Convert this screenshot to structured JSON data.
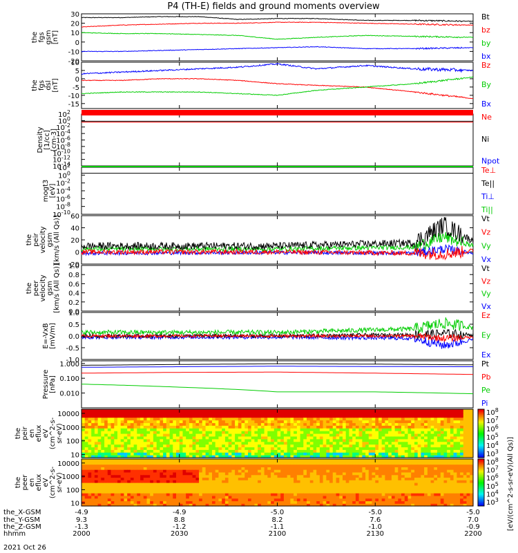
{
  "figure": {
    "title": "P4 (TH-E) fields and ground moments overview",
    "date": "2021 Oct 26"
  },
  "chart_data": [
    {
      "type": "line",
      "name": "fgs_gsm",
      "ylabel": [
        "the",
        "fgs",
        "gsm",
        "[nT]"
      ],
      "ylim": [
        -20,
        30
      ],
      "yticks": [
        30,
        20,
        10,
        0,
        -10,
        -20
      ],
      "legend": [
        {
          "name": "Bt",
          "color": "#000000"
        },
        {
          "name": "bz",
          "color": "#ff0000"
        },
        {
          "name": "by",
          "color": "#00cc00"
        },
        {
          "name": "bx",
          "color": "#0000ff"
        }
      ],
      "series": [
        {
          "name": "Bt",
          "color": "#000000",
          "x": [
            0,
            20,
            40,
            60,
            80,
            100,
            120,
            145,
            170,
            200
          ],
          "y": [
            26,
            26,
            27,
            27,
            24,
            25,
            25,
            23,
            23,
            22
          ],
          "noise": 0.3
        },
        {
          "name": "bz",
          "color": "#ff0000",
          "x": [
            0,
            20,
            40,
            60,
            80,
            100,
            120,
            145,
            170,
            200
          ],
          "y": [
            16,
            18,
            19,
            20,
            20,
            21,
            21,
            20,
            19,
            18
          ],
          "noise": 0.3
        },
        {
          "name": "by",
          "color": "#00cc00",
          "x": [
            0,
            20,
            40,
            60,
            80,
            100,
            120,
            145,
            170,
            200
          ],
          "y": [
            10,
            9,
            9,
            8,
            7,
            3,
            5,
            7,
            6,
            5
          ],
          "noise": 0.3
        },
        {
          "name": "bx",
          "color": "#0000ff",
          "x": [
            0,
            20,
            40,
            60,
            80,
            100,
            120,
            145,
            170,
            200
          ],
          "y": [
            -10,
            -10,
            -9,
            -8,
            -7,
            -6,
            -5,
            -7,
            -7,
            -6
          ],
          "noise": 0.3
        }
      ]
    },
    {
      "type": "line",
      "name": "fgs_dsl",
      "ylabel": [
        "the",
        "fgs",
        "dsl",
        "[nT]"
      ],
      "ylim": [
        -18,
        10
      ],
      "yticks": [
        10,
        5,
        0,
        -5,
        -10,
        -15
      ],
      "legend": [
        {
          "name": "Bz",
          "color": "#ff0000"
        },
        {
          "name": "By",
          "color": "#00cc00"
        },
        {
          "name": "Bx",
          "color": "#0000ff"
        }
      ],
      "series": [
        {
          "name": "Bz",
          "color": "#ff0000",
          "x": [
            0,
            20,
            40,
            60,
            80,
            100,
            120,
            145,
            170,
            200
          ],
          "y": [
            -1,
            -1,
            0,
            0,
            -1,
            -3,
            -4,
            -5,
            -8,
            -12
          ],
          "noise": 0.2
        },
        {
          "name": "By",
          "color": "#00cc00",
          "x": [
            0,
            20,
            40,
            60,
            80,
            100,
            120,
            145,
            170,
            200
          ],
          "y": [
            -9,
            -8,
            -8,
            -8,
            -9,
            -10,
            -7,
            -5,
            -3,
            1
          ],
          "noise": 0.2
        },
        {
          "name": "Bx",
          "color": "#0000ff",
          "x": [
            0,
            20,
            40,
            60,
            80,
            100,
            120,
            145,
            170,
            200
          ],
          "y": [
            3,
            4,
            5,
            6,
            7,
            9,
            6,
            8,
            6,
            5
          ],
          "noise": 0.4
        }
      ]
    },
    {
      "type": "line",
      "name": "density",
      "ylabel": [
        "Density",
        "[1/cc]",
        "[cm-3]"
      ],
      "yscale": "log",
      "ylim": [
        1e-14,
        100
      ],
      "yticks_exp": [
        2,
        0,
        -2,
        -4,
        -6,
        -8,
        -10,
        -12,
        -14
      ],
      "legend": [
        {
          "name": "Ne",
          "color": "#ff0000"
        },
        {
          "name": "Ni",
          "color": "#000000"
        },
        {
          "name": "Npot",
          "color": "#0000ff"
        }
      ],
      "series": [
        {
          "name": "Ne",
          "color": "#ff0000",
          "x": [
            0,
            200
          ],
          "y": [
            0.3,
            0.3
          ],
          "noise": 0
        },
        {
          "name": "Ni",
          "color": "#000000",
          "x": [
            0,
            200
          ],
          "y": [
            0.6,
            0.6
          ],
          "noise": 0
        }
      ]
    },
    {
      "type": "line",
      "name": "temperature",
      "ylabel": [
        "mogt3",
        "[eV]"
      ],
      "yscale": "log",
      "ylim": [
        1e-10,
        100
      ],
      "yticks_exp": [
        2,
        0,
        -2,
        -4,
        -6,
        -8,
        -10
      ],
      "legend": [
        {
          "name": "Te⊥",
          "color": "#ff0000"
        },
        {
          "name": "Te||",
          "color": "#000000"
        },
        {
          "name": "Ti⊥",
          "color": "#0000ff"
        },
        {
          "name": "Ti||",
          "color": "#00cc00"
        }
      ],
      "series": [
        {
          "name": "Te||",
          "color": "#000000",
          "x": [
            0,
            200
          ],
          "y": [
            3,
            3
          ],
          "noise": 0
        }
      ]
    },
    {
      "type": "line",
      "name": "peir_velocity",
      "ylabel": [
        "the",
        "peir",
        "velocity",
        "gsm",
        "[km/s (All Qs)]"
      ],
      "ylim": [
        -20,
        60
      ],
      "yticks": [
        60,
        40,
        20,
        0,
        -20
      ],
      "legend": [
        {
          "name": "Vt",
          "color": "#000000"
        },
        {
          "name": "Vz",
          "color": "#ff0000"
        },
        {
          "name": "Vy",
          "color": "#00cc00"
        },
        {
          "name": "Vx",
          "color": "#0000ff"
        }
      ],
      "series": [
        {
          "name": "Vx",
          "color": "#0000ff",
          "x": [
            0,
            100,
            170,
            185,
            200
          ],
          "y": [
            -2,
            -1,
            -2,
            5,
            -2
          ],
          "noise": 3
        },
        {
          "name": "Vy",
          "color": "#00cc00",
          "x": [
            0,
            100,
            170,
            185,
            200
          ],
          "y": [
            5,
            5,
            8,
            25,
            10
          ],
          "noise": 4
        },
        {
          "name": "Vt",
          "color": "#000000",
          "x": [
            0,
            100,
            170,
            185,
            200
          ],
          "y": [
            10,
            10,
            15,
            45,
            18
          ],
          "noise": 6
        },
        {
          "name": "Vz",
          "color": "#ff0000",
          "x": [
            0,
            100,
            170,
            185,
            200
          ],
          "y": [
            0,
            0,
            -2,
            -3,
            2
          ],
          "noise": 4
        }
      ]
    },
    {
      "type": "line",
      "name": "peer_velocity",
      "ylabel": [
        "the",
        "peer",
        "velocity",
        "gsm",
        "[km/s (All Qs)]"
      ],
      "ylim": [
        0,
        1
      ],
      "yticks": [
        1.0,
        0.8,
        0.6,
        0.4,
        0.2,
        0.0
      ],
      "legend": [
        {
          "name": "Vt",
          "color": "#000000"
        },
        {
          "name": "Vz",
          "color": "#ff0000"
        },
        {
          "name": "Vy",
          "color": "#00cc00"
        },
        {
          "name": "Vx",
          "color": "#0000ff"
        }
      ],
      "series": []
    },
    {
      "type": "line",
      "name": "efield",
      "ylabel": [
        "E=-VxB",
        "[mV/m]"
      ],
      "ylim": [
        -1,
        1
      ],
      "yticks": [
        1.0,
        0.5,
        0.0,
        -0.5,
        -1.0
      ],
      "legend": [
        {
          "name": "Ez",
          "color": "#ff0000"
        },
        {
          "name": "Ey",
          "color": "#00cc00"
        },
        {
          "name": "Ex",
          "color": "#0000ff"
        }
      ],
      "series": [
        {
          "name": "Ex",
          "color": "#0000ff",
          "x": [
            0,
            100,
            170,
            185,
            200
          ],
          "y": [
            -0.05,
            -0.05,
            -0.1,
            -0.4,
            -0.15
          ],
          "noise": 0.08
        },
        {
          "name": "Ey",
          "color": "#00cc00",
          "x": [
            0,
            100,
            170,
            185,
            200
          ],
          "y": [
            0.15,
            0.15,
            0.3,
            0.55,
            0.35
          ],
          "noise": 0.1
        },
        {
          "name": "Et",
          "color": "#000000",
          "x": [
            0,
            100,
            170,
            185,
            200
          ],
          "y": [
            0.0,
            0.0,
            0.05,
            0.1,
            0.05
          ],
          "noise": 0.08
        },
        {
          "name": "Ez",
          "color": "#ff0000",
          "x": [
            0,
            100,
            170,
            185,
            200
          ],
          "y": [
            0.0,
            0.0,
            0.0,
            -0.1,
            -0.05
          ],
          "noise": 0.06
        }
      ]
    },
    {
      "type": "line",
      "name": "pressure",
      "ylabel": [
        "Pressure",
        "[nPa]"
      ],
      "yscale": "log",
      "ylim": [
        0.001,
        1.5
      ],
      "yticks_log": [
        1.0,
        0.1,
        0.01
      ],
      "ytick_labels": [
        "1.000",
        "0.100",
        "0.010"
      ],
      "legend": [
        {
          "name": "Pt",
          "color": "#000000"
        },
        {
          "name": "Pb",
          "color": "#ff0000"
        },
        {
          "name": "Pe",
          "color": "#00cc00"
        },
        {
          "name": "Pi",
          "color": "#0000ff"
        }
      ],
      "series": [
        {
          "name": "Pt",
          "color": "#000000",
          "x": [
            0,
            50,
            100,
            150,
            200
          ],
          "y": [
            0.75,
            0.85,
            0.95,
            0.9,
            0.8
          ],
          "noise": 0
        },
        {
          "name": "Pi",
          "color": "#0000ff",
          "x": [
            0,
            50,
            100,
            150,
            200
          ],
          "y": [
            0.55,
            0.6,
            0.65,
            0.62,
            0.6
          ],
          "noise": 0
        },
        {
          "name": "Pb",
          "color": "#ff0000",
          "x": [
            0,
            50,
            100,
            150,
            200
          ],
          "y": [
            0.22,
            0.25,
            0.26,
            0.22,
            0.18
          ],
          "noise": 0
        },
        {
          "name": "Pe",
          "color": "#00cc00",
          "x": [
            0,
            50,
            100,
            150,
            200
          ],
          "y": [
            0.04,
            0.025,
            0.012,
            0.012,
            0.009
          ],
          "noise": 0
        }
      ]
    },
    {
      "type": "heatmap",
      "name": "peir_en_eflux",
      "ylabel": [
        "the",
        "peir",
        "en",
        "eflux",
        "eV",
        "(cm^2-s-",
        "sr-eV)"
      ],
      "yscale": "log",
      "ylim": [
        6,
        20000
      ],
      "yticks_log": [
        10000,
        1000,
        100,
        10
      ],
      "ytick_labels": [
        "10000",
        "1000",
        "100",
        "10"
      ],
      "colorbar": {
        "exp_min": 3,
        "exp_max": 8,
        "labels": [
          "10^8",
          "10^7",
          "10^6",
          "10^5",
          "10^4",
          "10^3"
        ]
      }
    },
    {
      "type": "heatmap",
      "name": "peer_en_eflux",
      "ylabel": [
        "the",
        "peer",
        "en",
        "eflux",
        "eV",
        "(cm^2-s-",
        "sr-eV)"
      ],
      "yscale": "log",
      "ylim": [
        6,
        20000
      ],
      "yticks_log": [
        10000,
        1000,
        100,
        10
      ],
      "ytick_labels": [
        "10000",
        "1000",
        "100",
        "10"
      ],
      "colorbar": {
        "exp_min": 3,
        "exp_max": 8,
        "labels": [
          "10^8",
          "10^7",
          "10^6",
          "10^5",
          "10^4",
          "10^3"
        ]
      }
    }
  ],
  "colorbar_label": "[eV/(cm^2-s-sr-eV)(All Qs)]",
  "xaxis": {
    "row_labels": [
      "the_X-GSM",
      "the_Y-GSM",
      "the_Z-GSM",
      "hhmm"
    ],
    "ticks": [
      {
        "t": 0,
        "values": [
          "-4.9",
          "9.3",
          "-1.3",
          "2000"
        ]
      },
      {
        "t": 50,
        "values": [
          "-4.9",
          "8.8",
          "-1.2",
          "2030"
        ]
      },
      {
        "t": 100,
        "values": [
          "-5.0",
          "8.2",
          "-1.1",
          "2100"
        ]
      },
      {
        "t": 150,
        "values": [
          "-5.0",
          "7.6",
          "-1.0",
          "2130"
        ]
      },
      {
        "t": 200,
        "values": [
          "-5.0",
          "7.0",
          "-0.9",
          "2200"
        ]
      }
    ]
  }
}
